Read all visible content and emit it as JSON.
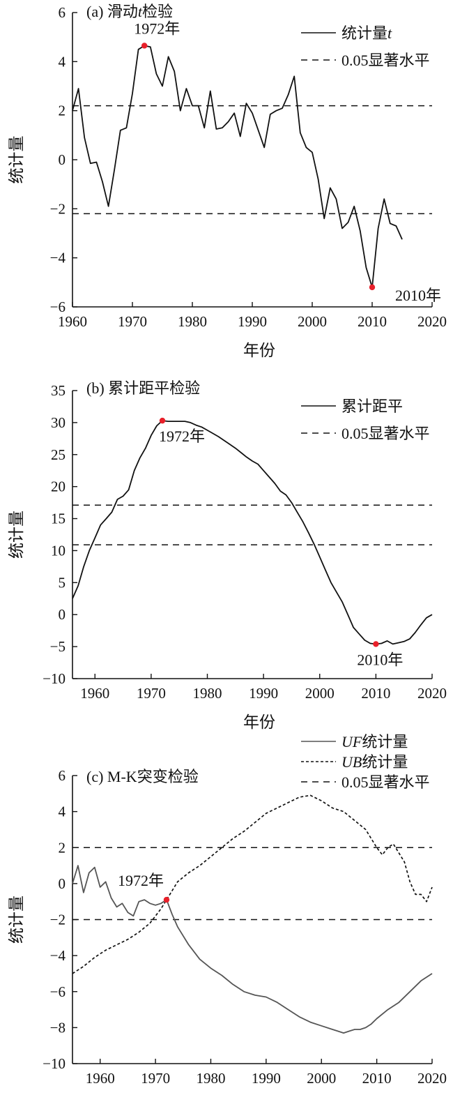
{
  "chart_data": [
    {
      "type": "line",
      "title": "(a) 滑动t检验",
      "title_parts": [
        "(a) 滑动",
        "t",
        "检验"
      ],
      "xlabel": "年份",
      "ylabel": "统计量",
      "xlim": [
        1960,
        2020
      ],
      "ylim": [
        -6,
        6
      ],
      "xticks": [
        1960,
        1970,
        1980,
        1990,
        2000,
        2010,
        2020
      ],
      "yticks": [
        -6,
        -4,
        -2,
        0,
        2,
        4,
        6
      ],
      "ytick_labels": [
        "−6",
        "−4",
        "−2",
        "0",
        "2",
        "4",
        "6"
      ],
      "grid": false,
      "legend_position": "top-right",
      "series": [
        {
          "name": "统计量t",
          "name_parts": [
            "统计量",
            "t"
          ],
          "style": "solid",
          "x": [
            1960,
            1961,
            1962,
            1963,
            1964,
            1965,
            1966,
            1967,
            1968,
            1969,
            1970,
            1971,
            1972,
            1973,
            1974,
            1975,
            1976,
            1977,
            1978,
            1979,
            1980,
            1981,
            1982,
            1983,
            1984,
            1985,
            1986,
            1987,
            1988,
            1989,
            1990,
            1991,
            1992,
            1993,
            1994,
            1995,
            1996,
            1997,
            1998,
            1999,
            2000,
            2001,
            2002,
            2003,
            2004,
            2005,
            2006,
            2007,
            2008,
            2009,
            2010,
            2011,
            2012,
            2013,
            2014,
            2015
          ],
          "y": [
            2.0,
            2.9,
            0.9,
            -0.15,
            -0.1,
            -0.9,
            -1.9,
            -0.4,
            1.2,
            1.3,
            2.7,
            4.5,
            4.65,
            4.6,
            3.5,
            3.0,
            4.2,
            3.6,
            2.0,
            2.9,
            2.2,
            2.2,
            1.3,
            2.8,
            1.25,
            1.3,
            1.55,
            1.9,
            0.95,
            2.3,
            1.9,
            1.2,
            0.5,
            1.85,
            2.0,
            2.1,
            2.65,
            3.4,
            1.1,
            0.5,
            0.3,
            -0.8,
            -2.4,
            -1.15,
            -1.6,
            -2.8,
            -2.55,
            -1.9,
            -2.9,
            -4.4,
            -5.2,
            -2.8,
            -1.6,
            -2.6,
            -2.7,
            -3.25
          ]
        },
        {
          "name": "0.05显著水平",
          "style": "dashed",
          "levels": [
            2.2,
            -2.2
          ]
        }
      ],
      "annotations": [
        {
          "label": "1972年",
          "x": 1972,
          "y": 4.65
        },
        {
          "label": "2010年",
          "x": 2010,
          "y": -5.2
        }
      ]
    },
    {
      "type": "line",
      "title": "(b) 累计距平检验",
      "xlabel": "年份",
      "ylabel": "统计量",
      "xlim": [
        1956,
        2020
      ],
      "ylim": [
        -10,
        35
      ],
      "xticks": [
        1960,
        1970,
        1980,
        1990,
        2000,
        2010,
        2020
      ],
      "yticks": [
        -10,
        -5,
        0,
        5,
        10,
        15,
        20,
        25,
        30,
        35
      ],
      "ytick_labels": [
        "−10",
        "−5",
        "0",
        "5",
        "10",
        "15",
        "20",
        "25",
        "30",
        "35"
      ],
      "grid": false,
      "legend_position": "top-right",
      "series": [
        {
          "name": "累计距平",
          "style": "solid",
          "x": [
            1956,
            1957,
            1958,
            1959,
            1960,
            1961,
            1962,
            1963,
            1964,
            1965,
            1966,
            1967,
            1968,
            1969,
            1970,
            1971,
            1972,
            1973,
            1974,
            1975,
            1976,
            1977,
            1978,
            1979,
            1980,
            1981,
            1982,
            1983,
            1984,
            1985,
            1986,
            1987,
            1988,
            1989,
            1990,
            1991,
            1992,
            1993,
            1994,
            1995,
            1996,
            1997,
            1998,
            1999,
            2000,
            2001,
            2002,
            2003,
            2004,
            2005,
            2006,
            2007,
            2008,
            2009,
            2010,
            2011,
            2012,
            2013,
            2014,
            2015,
            2016,
            2017,
            2018,
            2019,
            2020
          ],
          "y": [
            2.5,
            4.5,
            7.5,
            10.0,
            12.0,
            14.0,
            15.0,
            16.0,
            18.0,
            18.5,
            19.5,
            22.5,
            24.5,
            26.0,
            28.0,
            29.5,
            30.3,
            30.2,
            30.2,
            30.2,
            30.2,
            30.0,
            29.6,
            29.3,
            28.8,
            28.3,
            27.8,
            27.2,
            26.6,
            26.0,
            25.3,
            24.6,
            24.0,
            23.5,
            22.5,
            21.5,
            20.5,
            19.3,
            18.7,
            17.5,
            16.0,
            14.5,
            12.8,
            11.0,
            9.0,
            7.0,
            5.0,
            3.5,
            2.0,
            0.0,
            -2.0,
            -3.0,
            -4.0,
            -4.5,
            -4.6,
            -4.5,
            -4.1,
            -4.6,
            -4.4,
            -4.2,
            -3.8,
            -2.8,
            -1.6,
            -0.5,
            0.0
          ]
        },
        {
          "name": "0.05显著水平",
          "style": "dashed",
          "levels": [
            17.1,
            10.9
          ]
        }
      ],
      "annotations": [
        {
          "label": "1972年",
          "x": 1972,
          "y": 30.3
        },
        {
          "label": "2010年",
          "x": 2010,
          "y": -4.6
        }
      ]
    },
    {
      "type": "line",
      "title": "(c) M-K突变检验",
      "xlabel": "年份",
      "ylabel": "统计量",
      "xlim": [
        1955,
        2020
      ],
      "ylim": [
        -10,
        6
      ],
      "xticks": [
        1960,
        1970,
        1980,
        1990,
        2000,
        2010,
        2020
      ],
      "yticks": [
        -10,
        -8,
        -6,
        -4,
        -2,
        0,
        2,
        4,
        6
      ],
      "ytick_labels": [
        "−10",
        "−8",
        "−6",
        "−4",
        "−2",
        "0",
        "2",
        "4",
        "6"
      ],
      "grid": false,
      "legend_position": "top-right",
      "series": [
        {
          "name": "UF统计量",
          "name_parts": [
            "UF",
            "统计量"
          ],
          "style": "solid",
          "color": "#555555",
          "x": [
            1955,
            1956,
            1957,
            1958,
            1959,
            1960,
            1961,
            1962,
            1963,
            1964,
            1965,
            1966,
            1967,
            1968,
            1969,
            1970,
            1971,
            1972,
            1973,
            1974,
            1976,
            1978,
            1980,
            1982,
            1984,
            1986,
            1988,
            1990,
            1992,
            1994,
            1996,
            1998,
            2000,
            2002,
            2003,
            2004,
            2005,
            2006,
            2007,
            2008,
            2009,
            2010,
            2012,
            2014,
            2016,
            2018,
            2020
          ],
          "y": [
            0.0,
            1.0,
            -0.5,
            0.6,
            0.9,
            -0.2,
            0.1,
            -0.8,
            -1.3,
            -1.1,
            -1.6,
            -1.8,
            -1.0,
            -0.9,
            -1.1,
            -1.2,
            -1.1,
            -0.9,
            -1.7,
            -2.4,
            -3.4,
            -4.2,
            -4.7,
            -5.1,
            -5.6,
            -6.0,
            -6.2,
            -6.3,
            -6.6,
            -7.0,
            -7.4,
            -7.7,
            -7.9,
            -8.1,
            -8.2,
            -8.3,
            -8.2,
            -8.1,
            -8.1,
            -8.0,
            -7.8,
            -7.5,
            -7.0,
            -6.6,
            -6.0,
            -5.4,
            -5.0
          ]
        },
        {
          "name": "UB统计量",
          "name_parts": [
            "UB",
            "统计量"
          ],
          "style": "dotted",
          "x": [
            1955,
            1957,
            1959,
            1961,
            1963,
            1965,
            1967,
            1969,
            1971,
            1972,
            1974,
            1976,
            1978,
            1980,
            1982,
            1984,
            1986,
            1988,
            1990,
            1992,
            1994,
            1996,
            1998,
            2000,
            2002,
            2004,
            2006,
            2008,
            2010,
            2011,
            2012,
            2013,
            2014,
            2015,
            2016,
            2017,
            2018,
            2019,
            2020
          ],
          "y": [
            -5.0,
            -4.6,
            -4.1,
            -3.7,
            -3.4,
            -3.1,
            -2.7,
            -2.2,
            -1.4,
            -0.9,
            0.1,
            0.6,
            1.0,
            1.5,
            2.0,
            2.5,
            2.9,
            3.4,
            3.9,
            4.2,
            4.5,
            4.8,
            4.9,
            4.6,
            4.2,
            4.0,
            3.5,
            3.0,
            2.0,
            1.6,
            2.0,
            2.2,
            1.7,
            1.2,
            0.1,
            -0.6,
            -0.6,
            -1.0,
            -0.2
          ]
        },
        {
          "name": "0.05显著水平",
          "style": "dashed",
          "levels": [
            2.0,
            -2.0
          ]
        }
      ],
      "annotations": [
        {
          "label": "1972年",
          "x": 1972,
          "y": -0.9
        }
      ]
    }
  ]
}
